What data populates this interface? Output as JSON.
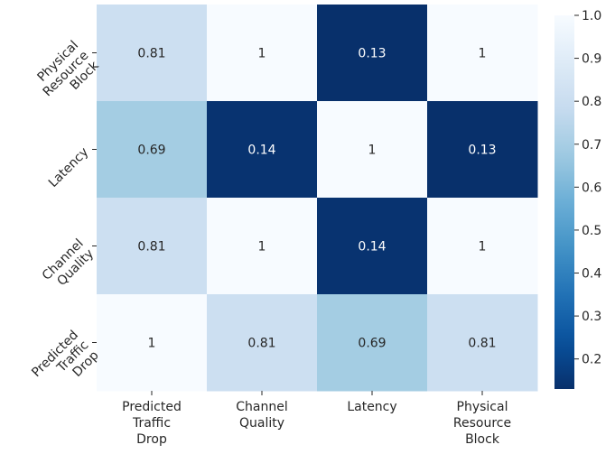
{
  "chart_data": {
    "type": "heatmap",
    "title": "",
    "xlabel": "",
    "ylabel": "",
    "x_categories": [
      [
        "Predicted",
        "Traffic",
        "Drop"
      ],
      [
        "Channel",
        "Quality"
      ],
      [
        "Latency"
      ],
      [
        "Physical",
        "Resource",
        "Block"
      ]
    ],
    "y_categories": [
      [
        "Physical",
        "Resource",
        "Block"
      ],
      [
        "Latency"
      ],
      [
        "Channel",
        "Quality"
      ],
      [
        "Predicted",
        "Traffic",
        "Drop"
      ]
    ],
    "values": [
      [
        0.81,
        1,
        0.13,
        1
      ],
      [
        0.69,
        0.14,
        1,
        0.13
      ],
      [
        0.81,
        1,
        0.14,
        1
      ],
      [
        1,
        0.81,
        0.69,
        0.81
      ]
    ],
    "value_labels": [
      [
        "0.81",
        "1",
        "0.13",
        "1"
      ],
      [
        "0.69",
        "0.14",
        "1",
        "0.13"
      ],
      [
        "0.81",
        "1",
        "0.14",
        "1"
      ],
      [
        "1",
        "0.81",
        "0.69",
        "0.81"
      ]
    ],
    "colormap": "Blues_r",
    "colorbar": {
      "range": [
        0.13,
        1.0
      ],
      "ticks": [
        0.2,
        0.3,
        0.4,
        0.5,
        0.6,
        0.7,
        0.8,
        0.9,
        1.0
      ],
      "tick_labels": [
        "0.2",
        "0.3",
        "0.4",
        "0.5",
        "0.6",
        "0.7",
        "0.8",
        "0.9",
        "1.0"
      ]
    },
    "grid": false,
    "legend": "colorbar-right"
  }
}
